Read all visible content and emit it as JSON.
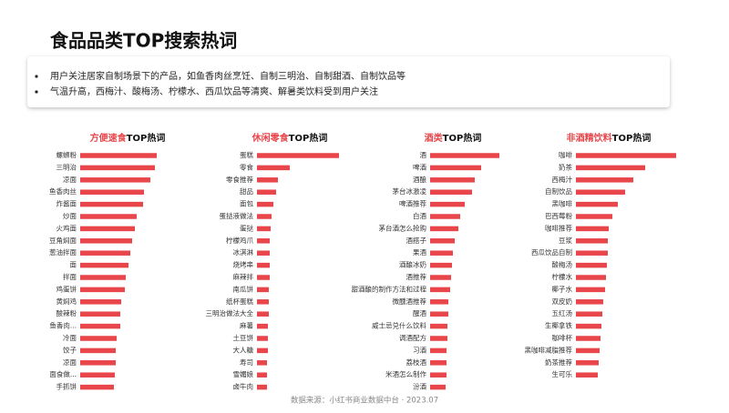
{
  "title": "食品品类TOP搜索热词",
  "bullets": [
    "用户关注居家自制场景下的产品，如鱼香肉丝烹饪、自制三明治、自制甜酒、自制饮品等",
    "气温升高，西梅汁、酸梅汤、柠檬水、西瓜饮品等清爽、解暑类饮料受到用户关注"
  ],
  "source": "数据来源：小红书商业数据中台 · 2023.07",
  "chart_data": [
    {
      "type": "bar",
      "title_highlight": "方便速食",
      "title": "TOP热词",
      "color": "#e8464a",
      "xlim": [
        0,
        110
      ],
      "categories": [
        "螺蛳粉",
        "三明治",
        "凉面",
        "鱼香肉丝",
        "炸酱面",
        "炒面",
        "火鸡面",
        "豆角焖面",
        "葱油拌面",
        "面",
        "拌面",
        "鸡蛋饼",
        "黄焖鸡",
        "酸辣粉",
        "鱼香肉...",
        "冷面",
        "饺子",
        "凉面",
        "面食做...",
        "手抓饼"
      ],
      "values": [
        84,
        82,
        77,
        70,
        69,
        62,
        60,
        57,
        55,
        53,
        50,
        49,
        45,
        44,
        44,
        40,
        39,
        39,
        38,
        37
      ]
    },
    {
      "type": "bar",
      "title_highlight": "休闲零食",
      "title": "TOP热词",
      "color": "#e8464a",
      "xlim": [
        0,
        110
      ],
      "categories": [
        "蛋糕",
        "零食",
        "零食推荐",
        "甜品",
        "面包",
        "蛋挞液做法",
        "蛋挞",
        "柠檬鸡爪",
        "冰淇淋",
        "烧烤串",
        "麻辣拌",
        "南瓜饼",
        "纸杯蛋糕",
        "三明治做法大全",
        "麻薯",
        "土豆饼",
        "大人糖",
        "寿司",
        "雪媚娘",
        "卤牛肉"
      ],
      "values": [
        90,
        36,
        23,
        21,
        18,
        16,
        15,
        14,
        14,
        14,
        14,
        13,
        13,
        13,
        12,
        12,
        12,
        11,
        11,
        11
      ]
    },
    {
      "type": "bar",
      "title_highlight": "酒类",
      "title": "TOP热词",
      "color": "#e8464a",
      "xlim": [
        0,
        110
      ],
      "categories": [
        "酒",
        "啤酒",
        "酒酿",
        "茅台冰激凌",
        "啤酒推荐",
        "白酒",
        "茅台酒怎么抢购",
        "酒搭子",
        "果酒",
        "酒酿冰奶",
        "酒推荐",
        "甜酒酿的制作方法和过程",
        "微醺酒推荐",
        "醒酒",
        "威士忌兑什么饮料",
        "调酒配方",
        "习酒",
        "荔枝酒",
        "米酒怎么制作",
        "汾酒"
      ],
      "values": [
        76,
        56,
        49,
        46,
        38,
        33,
        31,
        27,
        25,
        24,
        23,
        22,
        20,
        20,
        19,
        19,
        18,
        18,
        18,
        17
      ]
    },
    {
      "type": "bar",
      "title_highlight": "非酒精饮料",
      "title": "TOP热词",
      "color": "#e8464a",
      "xlim": [
        0,
        110
      ],
      "categories": [
        "咖啡",
        "奶茶",
        "西梅汁",
        "自制饮品",
        "黑咖啡",
        "巴西莓粉",
        "咖啡推荐",
        "豆浆",
        "西瓜饮品自制",
        "酸梅汤",
        "柠檬水",
        "椰子水",
        "双皮奶",
        "五红汤",
        "生椰拿铁",
        "咖啡杯",
        "黑咖啡减脂推荐",
        "奶茶推荐",
        "生可乐"
      ],
      "values": [
        110,
        76,
        63,
        54,
        46,
        40,
        36,
        35,
        35,
        34,
        33,
        32,
        30,
        29,
        28,
        27,
        26,
        25,
        24
      ]
    }
  ]
}
